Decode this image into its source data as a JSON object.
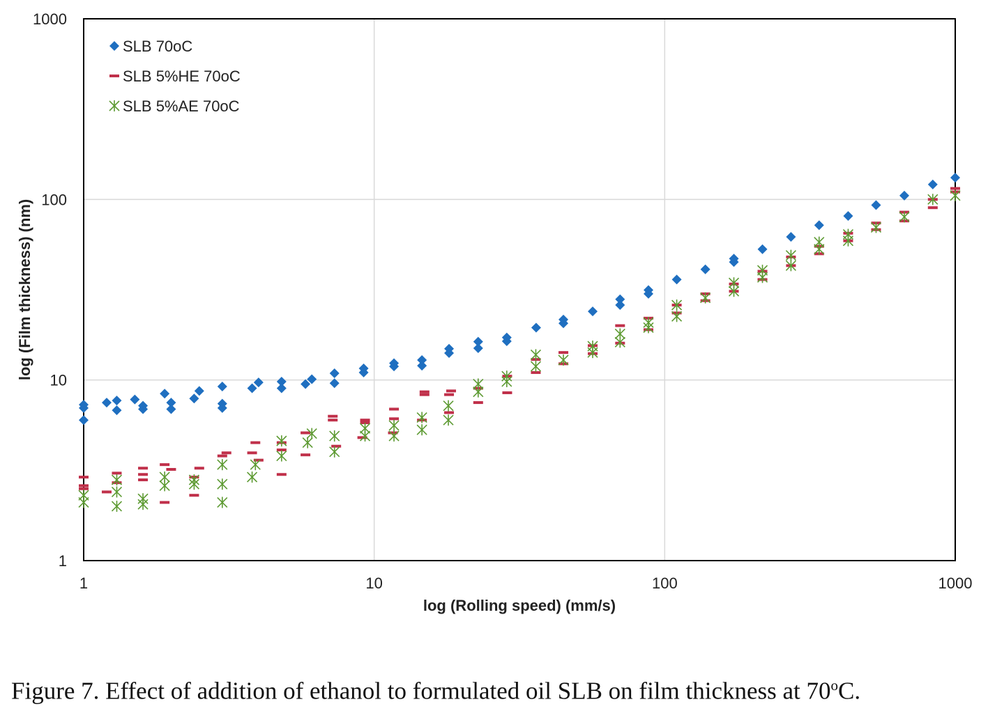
{
  "caption": {
    "text_before": "Figure 7. Effect of addition of ethanol to formulated oil SLB on film thickness at 70",
    "superscript": "o",
    "text_after": "C."
  },
  "chart_data": {
    "type": "scatter",
    "xlabel": "log (Rolling speed) (mm/s)",
    "ylabel": "log (Film thickness) (nm)",
    "xscale": "log",
    "yscale": "log",
    "xlim": [
      1,
      1000
    ],
    "ylim": [
      1,
      1000
    ],
    "xticks": [
      "1",
      "10",
      "100",
      "1000"
    ],
    "yticks": [
      "1",
      "10",
      "100",
      "1000"
    ],
    "grid": true,
    "legend_position": "top-left",
    "series": [
      {
        "name": "SLB 70oC",
        "marker": "diamond",
        "color": "#1f6fc0",
        "x": [
          1,
          1,
          1,
          1.2,
          1.3,
          1.3,
          1.5,
          1.6,
          1.6,
          1.9,
          2,
          2,
          2.4,
          2.5,
          3,
          3,
          3,
          3.8,
          4,
          4.8,
          4.8,
          5.8,
          6.1,
          7.3,
          7.3,
          9.2,
          9.2,
          11.7,
          11.7,
          14.6,
          14.6,
          18.1,
          18.1,
          22.8,
          22.8,
          28.6,
          28.6,
          36.1,
          44.8,
          44.8,
          56.5,
          70.2,
          70.2,
          87.9,
          87.9,
          110,
          138,
          173,
          173,
          217,
          272,
          340,
          428,
          534,
          668,
          837,
          1000
        ],
        "y": [
          6,
          7,
          7.3,
          7.5,
          6.8,
          7.7,
          7.8,
          6.9,
          7.2,
          8.4,
          6.9,
          7.5,
          7.9,
          8.7,
          7,
          7.4,
          9.2,
          9,
          9.7,
          9,
          9.8,
          9.5,
          10.1,
          9.6,
          10.9,
          11,
          11.6,
          11.9,
          12.4,
          12,
          12.9,
          14.1,
          14.9,
          15,
          16.3,
          16.4,
          17.2,
          19.5,
          20.6,
          21.6,
          24,
          26,
          28,
          30,
          31.5,
          36,
          41,
          45,
          47,
          53,
          62,
          72,
          81,
          93,
          105,
          121,
          132
        ]
      },
      {
        "name": "SLB 5%HE 70oC",
        "marker": "dash",
        "color": "#c0304a",
        "x": [
          1,
          1,
          1,
          1.2,
          1.3,
          1.3,
          1.6,
          1.6,
          1.6,
          1.9,
          1.9,
          2,
          2.4,
          2.4,
          2.5,
          3,
          3.1,
          3.8,
          3.9,
          4,
          4.8,
          4.8,
          4.8,
          5.8,
          5.8,
          7.2,
          7.2,
          7.4,
          9.1,
          9.3,
          9.3,
          11.6,
          11.7,
          11.7,
          14.6,
          14.9,
          14.9,
          18.1,
          18.1,
          18.4,
          22.8,
          22.8,
          28.7,
          28.7,
          36,
          36,
          44.8,
          44.8,
          56.5,
          56.5,
          70.2,
          70.2,
          87.9,
          87.9,
          110,
          110,
          138,
          138,
          173,
          173,
          217,
          217,
          272,
          272,
          340,
          340,
          428,
          428,
          534,
          534,
          668,
          668,
          837,
          837,
          1000,
          1000
        ],
        "y": [
          2.5,
          2.6,
          2.9,
          2.4,
          2.7,
          3.05,
          2.8,
          3,
          3.25,
          2.1,
          3.4,
          3.2,
          2.3,
          2.9,
          3.25,
          3.8,
          3.95,
          3.95,
          4.5,
          3.6,
          3,
          4.1,
          4.5,
          3.85,
          5.1,
          6,
          6.3,
          4.3,
          4.8,
          5.8,
          6,
          5.1,
          6.1,
          6.9,
          6,
          8.3,
          8.6,
          6.6,
          8.3,
          8.7,
          7.5,
          9,
          8.5,
          10.5,
          11,
          13,
          12.3,
          14.2,
          14,
          15.5,
          16,
          20,
          19,
          22,
          23.5,
          26,
          27.5,
          30,
          31,
          34,
          36,
          40,
          43,
          48,
          50,
          55,
          59,
          65,
          68,
          74,
          76,
          85,
          90,
          100,
          110,
          115
        ]
      },
      {
        "name": "SLB 5%AE 70oC",
        "marker": "asterisk",
        "color": "#5d9a32",
        "x": [
          1,
          1,
          1.3,
          1.3,
          1.3,
          1.6,
          1.6,
          1.9,
          1.9,
          2.4,
          2.4,
          3,
          3,
          3,
          3.8,
          3.9,
          4.8,
          4.8,
          5.9,
          6.1,
          7.3,
          7.3,
          9.3,
          9.3,
          11.7,
          11.7,
          14.6,
          14.6,
          18,
          18,
          22.8,
          22.8,
          28.6,
          28.6,
          36,
          36,
          44.8,
          56.5,
          56.5,
          70.2,
          70.2,
          87.9,
          87.9,
          110,
          110,
          138,
          173,
          173,
          217,
          217,
          272,
          272,
          340,
          340,
          428,
          428,
          534,
          668,
          837,
          1000
        ],
        "y": [
          2.1,
          2.3,
          2.0,
          2.4,
          2.8,
          2.05,
          2.2,
          2.6,
          2.9,
          2.65,
          2.8,
          2.1,
          2.65,
          3.4,
          2.9,
          3.4,
          3.8,
          4.6,
          4.5,
          5.05,
          4,
          4.9,
          4.9,
          5.4,
          4.9,
          5.6,
          5.3,
          6.2,
          6,
          7.2,
          8.6,
          9.5,
          9.8,
          10.5,
          11.9,
          13.8,
          12.9,
          14.2,
          15.4,
          16.2,
          18,
          19.5,
          20.8,
          22.5,
          26,
          28.5,
          31,
          34.5,
          37,
          40.5,
          43,
          49,
          53,
          58,
          59,
          64,
          70,
          80,
          100,
          105
        ]
      }
    ]
  }
}
